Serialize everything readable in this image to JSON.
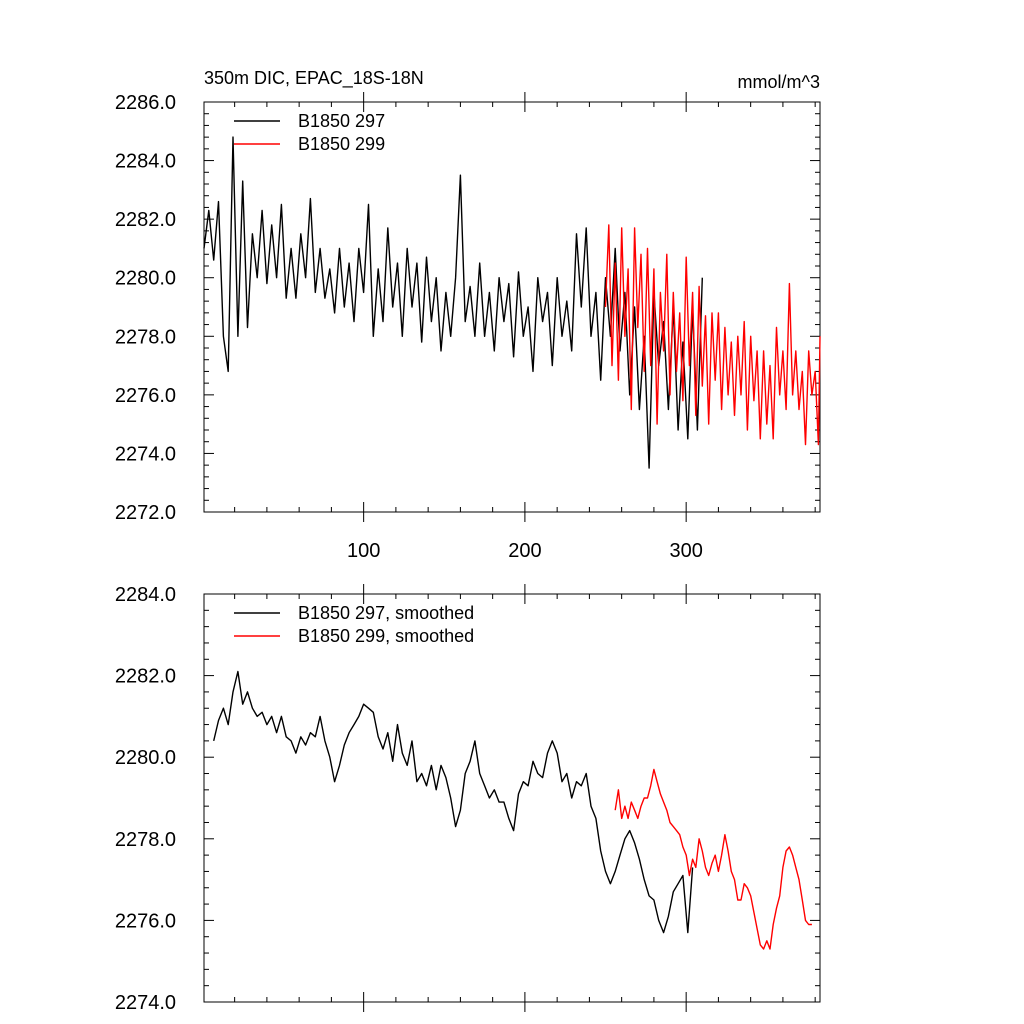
{
  "colors": {
    "series_297": "#000000",
    "series_299": "#ff0000",
    "axes": "#000000",
    "background": "#ffffff"
  },
  "chart_data": [
    {
      "type": "line",
      "title": "350m DIC, EPAC_18S-18N",
      "units_label": "mmol/m^3",
      "xlabel": "",
      "ylabel": "",
      "xlim": [
        1,
        383
      ],
      "ylim": [
        2272,
        2286
      ],
      "x_ticks": [
        100,
        200,
        300
      ],
      "x_tick_labels": [
        "100",
        "200",
        "300"
      ],
      "y_ticks": [
        2272,
        2274,
        2276,
        2278,
        2280,
        2282,
        2284,
        2286
      ],
      "y_tick_labels": [
        "2272.0",
        "2274.0",
        "2276.0",
        "2278.0",
        "2280.0",
        "2282.0",
        "2284.0",
        "2286.0"
      ],
      "grid": false,
      "legend_position": "top-left",
      "series": [
        {
          "name": "B1850 297",
          "color": "#000000",
          "x": [
            1,
            4,
            7,
            10,
            13,
            16,
            19,
            22,
            25,
            28,
            31,
            34,
            37,
            40,
            43,
            46,
            49,
            52,
            55,
            58,
            61,
            64,
            67,
            70,
            73,
            76,
            79,
            82,
            85,
            88,
            91,
            94,
            97,
            100,
            103,
            106,
            109,
            112,
            115,
            118,
            121,
            124,
            127,
            130,
            133,
            136,
            139,
            142,
            145,
            148,
            151,
            154,
            157,
            160,
            163,
            166,
            169,
            172,
            175,
            178,
            181,
            184,
            187,
            190,
            193,
            196,
            199,
            202,
            205,
            208,
            211,
            214,
            217,
            220,
            223,
            226,
            229,
            232,
            235,
            238,
            241,
            244,
            247,
            250,
            253,
            256,
            259,
            262,
            265,
            268,
            271,
            274,
            277,
            280,
            283,
            286,
            289,
            292,
            295,
            298,
            301,
            304,
            307,
            310
          ],
          "y": [
            2281.0,
            2282.3,
            2280.6,
            2282.6,
            2278.0,
            2276.8,
            2284.8,
            2278.0,
            2283.3,
            2278.3,
            2281.5,
            2280.0,
            2282.3,
            2279.8,
            2281.8,
            2280.0,
            2282.5,
            2279.3,
            2281.0,
            2279.3,
            2281.5,
            2280.0,
            2282.7,
            2279.5,
            2281.0,
            2279.3,
            2280.3,
            2278.8,
            2281.0,
            2279.0,
            2280.5,
            2278.5,
            2281.0,
            2279.5,
            2282.5,
            2278.0,
            2280.3,
            2278.5,
            2281.7,
            2279.0,
            2280.5,
            2278.0,
            2281.0,
            2279.0,
            2280.5,
            2277.8,
            2280.7,
            2278.5,
            2280.0,
            2277.5,
            2279.5,
            2278.0,
            2280.0,
            2283.5,
            2278.5,
            2279.7,
            2278.0,
            2280.5,
            2278.0,
            2279.5,
            2277.5,
            2280.0,
            2278.5,
            2279.8,
            2277.3,
            2280.2,
            2278.0,
            2279.0,
            2276.8,
            2280.0,
            2278.5,
            2279.5,
            2277.0,
            2280.0,
            2278.0,
            2279.2,
            2277.5,
            2281.5,
            2279.0,
            2281.7,
            2278.0,
            2279.5,
            2276.5,
            2280.0,
            2278.0,
            2281.0,
            2277.5,
            2279.5,
            2276.0,
            2279.0,
            2275.5,
            2278.0,
            2273.5,
            2279.5,
            2277.0,
            2278.5,
            2275.5,
            2279.0,
            2274.8,
            2277.8,
            2274.5,
            2279.0,
            2274.8,
            2280.0
          ]
        },
        {
          "name": "B1850 299",
          "color": "#ff0000",
          "x": [
            250,
            252,
            254,
            256,
            258,
            260,
            262,
            264,
            266,
            268,
            270,
            272,
            274,
            276,
            278,
            280,
            282,
            284,
            286,
            288,
            290,
            292,
            294,
            296,
            298,
            300,
            302,
            304,
            306,
            308,
            310,
            312,
            314,
            316,
            318,
            320,
            322,
            324,
            326,
            328,
            330,
            332,
            334,
            336,
            338,
            340,
            342,
            344,
            346,
            348,
            350,
            352,
            354,
            356,
            358,
            360,
            362,
            364,
            366,
            368,
            370,
            372,
            374,
            376,
            378,
            380,
            382,
            383
          ],
          "y": [
            2279.0,
            2281.8,
            2277.0,
            2280.5,
            2276.5,
            2281.7,
            2278.0,
            2280.3,
            2275.5,
            2281.7,
            2278.3,
            2280.8,
            2276.8,
            2281.0,
            2277.0,
            2280.3,
            2275.0,
            2279.5,
            2277.5,
            2280.8,
            2276.0,
            2279.5,
            2276.8,
            2278.8,
            2275.8,
            2280.7,
            2277.0,
            2279.5,
            2275.3,
            2279.7,
            2276.3,
            2278.7,
            2275.0,
            2278.8,
            2276.5,
            2278.8,
            2275.5,
            2278.3,
            2276.0,
            2277.8,
            2275.3,
            2278.0,
            2276.0,
            2278.5,
            2274.8,
            2278.0,
            2275.8,
            2277.5,
            2274.5,
            2277.5,
            2275.0,
            2277.0,
            2274.5,
            2278.3,
            2276.0,
            2277.5,
            2275.5,
            2279.8,
            2276.0,
            2277.5,
            2275.5,
            2276.8,
            2274.3,
            2277.5,
            2276.0,
            2276.8,
            2274.3,
            2278.0
          ]
        }
      ]
    },
    {
      "type": "line",
      "title": "",
      "xlabel": "",
      "ylabel": "",
      "xlim": [
        1,
        383
      ],
      "ylim": [
        2274,
        2284
      ],
      "x_ticks": [
        100,
        200,
        300
      ],
      "x_tick_labels": [
        "",
        "",
        ""
      ],
      "y_ticks": [
        2274,
        2276,
        2278,
        2280,
        2282,
        2284
      ],
      "y_tick_labels": [
        "2274.0",
        "2276.0",
        "2278.0",
        "2280.0",
        "2282.0",
        "2284.0"
      ],
      "grid": false,
      "legend_position": "top-left",
      "series": [
        {
          "name": "B1850 297, smoothed",
          "color": "#000000",
          "x": [
            7,
            10,
            13,
            16,
            19,
            22,
            25,
            28,
            31,
            34,
            37,
            40,
            43,
            46,
            49,
            52,
            55,
            58,
            61,
            64,
            67,
            70,
            73,
            76,
            79,
            82,
            85,
            88,
            91,
            94,
            97,
            100,
            103,
            106,
            109,
            112,
            115,
            118,
            121,
            124,
            127,
            130,
            133,
            136,
            139,
            142,
            145,
            148,
            151,
            154,
            157,
            160,
            163,
            166,
            169,
            172,
            175,
            178,
            181,
            184,
            187,
            190,
            193,
            196,
            199,
            202,
            205,
            208,
            211,
            214,
            217,
            220,
            223,
            226,
            229,
            232,
            235,
            238,
            241,
            244,
            247,
            250,
            253,
            256,
            259,
            262,
            265,
            268,
            271,
            274,
            277,
            280,
            283,
            286,
            289,
            292,
            295,
            298,
            301,
            304
          ],
          "y": [
            2280.4,
            2280.9,
            2281.2,
            2280.8,
            2281.6,
            2282.1,
            2281.3,
            2281.6,
            2281.2,
            2281.0,
            2281.1,
            2280.8,
            2281.0,
            2280.6,
            2281.0,
            2280.5,
            2280.4,
            2280.1,
            2280.5,
            2280.3,
            2280.6,
            2280.5,
            2281.0,
            2280.4,
            2280.0,
            2279.4,
            2279.8,
            2280.3,
            2280.6,
            2280.8,
            2281.0,
            2281.3,
            2281.2,
            2281.1,
            2280.5,
            2280.2,
            2280.6,
            2279.9,
            2280.8,
            2280.1,
            2279.8,
            2280.4,
            2279.4,
            2279.6,
            2279.3,
            2279.8,
            2279.2,
            2279.8,
            2279.5,
            2279.0,
            2278.3,
            2278.7,
            2279.6,
            2279.9,
            2280.4,
            2279.6,
            2279.3,
            2279.0,
            2279.2,
            2278.9,
            2278.9,
            2278.5,
            2278.2,
            2279.1,
            2279.4,
            2279.3,
            2279.9,
            2279.6,
            2279.5,
            2280.1,
            2280.4,
            2280.1,
            2279.4,
            2279.6,
            2279.0,
            2279.4,
            2279.3,
            2279.6,
            2278.8,
            2278.5,
            2277.7,
            2277.2,
            2276.9,
            2277.2,
            2277.6,
            2278.0,
            2278.2,
            2277.9,
            2277.5,
            2277.0,
            2276.6,
            2276.5,
            2276.0,
            2275.7,
            2276.1,
            2276.7,
            2276.9,
            2277.1,
            2275.7,
            2277.3
          ]
        },
        {
          "name": "B1850 299, smoothed",
          "color": "#ff0000",
          "x": [
            256,
            258,
            260,
            262,
            264,
            266,
            268,
            270,
            272,
            274,
            276,
            278,
            280,
            282,
            284,
            286,
            288,
            290,
            292,
            294,
            296,
            298,
            300,
            302,
            304,
            306,
            308,
            310,
            312,
            314,
            316,
            318,
            320,
            322,
            324,
            326,
            328,
            330,
            332,
            334,
            336,
            338,
            340,
            342,
            344,
            346,
            348,
            350,
            352,
            354,
            356,
            358,
            360,
            362,
            364,
            366,
            368,
            370,
            372,
            374,
            376,
            378
          ],
          "y": [
            2278.7,
            2279.2,
            2278.5,
            2278.8,
            2278.5,
            2278.9,
            2278.7,
            2278.5,
            2278.8,
            2279.0,
            2279.0,
            2279.3,
            2279.7,
            2279.4,
            2279.1,
            2278.9,
            2278.7,
            2278.4,
            2278.3,
            2278.2,
            2278.1,
            2277.8,
            2277.6,
            2277.1,
            2277.5,
            2277.3,
            2278.0,
            2277.7,
            2277.3,
            2277.1,
            2277.4,
            2277.6,
            2277.2,
            2277.6,
            2278.1,
            2277.7,
            2277.2,
            2277.0,
            2276.5,
            2276.5,
            2276.9,
            2276.8,
            2276.6,
            2276.2,
            2275.8,
            2275.4,
            2275.3,
            2275.5,
            2275.3,
            2275.9,
            2276.3,
            2276.6,
            2277.3,
            2277.7,
            2277.8,
            2277.6,
            2277.3,
            2277.0,
            2276.5,
            2276.0,
            2275.9,
            2275.9
          ]
        }
      ]
    }
  ]
}
